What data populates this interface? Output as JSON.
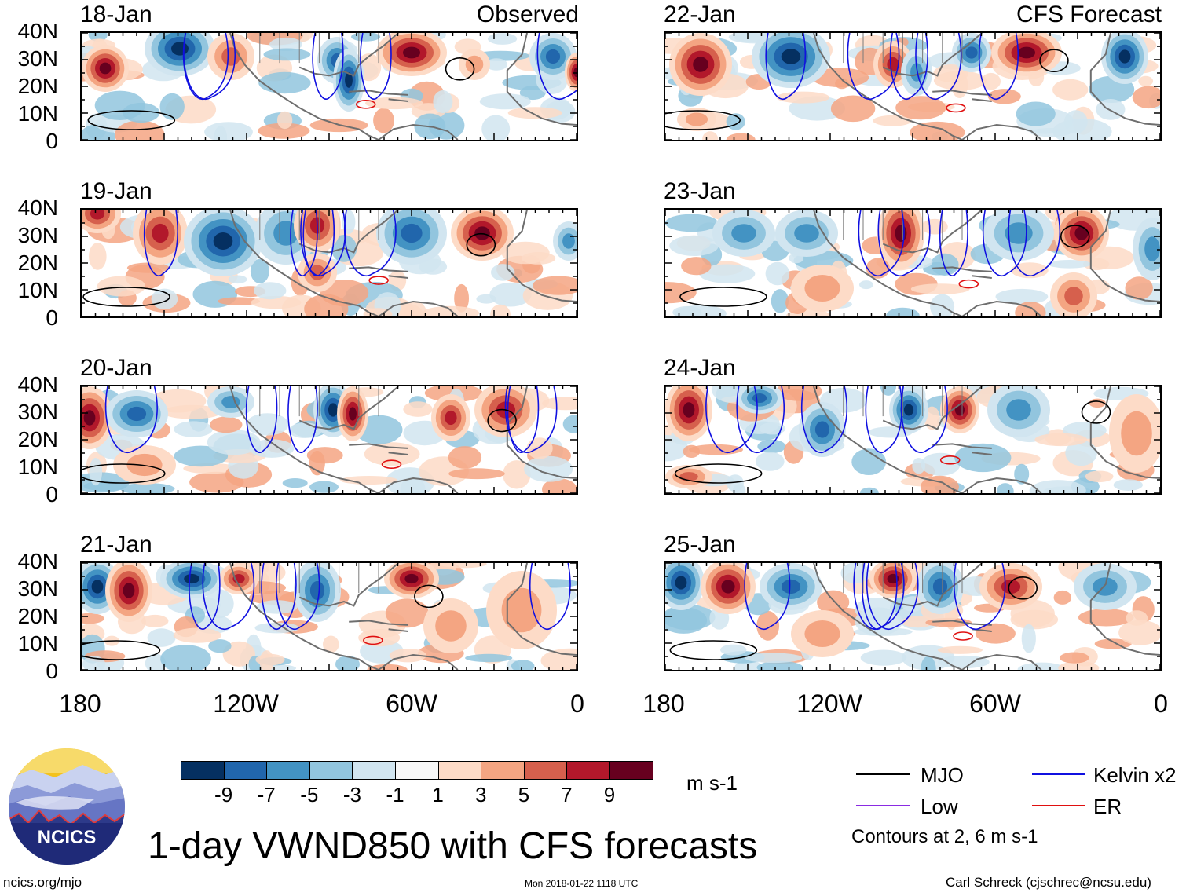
{
  "colors": {
    "neg9": "#053061",
    "neg7": "#2166ac",
    "neg5": "#4393c3",
    "neg3": "#92c5de",
    "neg1": "#d1e5f0",
    "zero": "#f7f7f7",
    "pos1": "#fddbc7",
    "pos3": "#f4a582",
    "pos5": "#d6604d",
    "pos7": "#b2182b",
    "pos9": "#67001f",
    "mjo": "#000000",
    "low": "#8a2be2",
    "kelvin": "#1010e0",
    "er": "#e01010"
  },
  "observed_tag": "Observed",
  "forecast_tag": "CFS Forecast",
  "panels_left": [
    "18-Jan",
    "19-Jan",
    "20-Jan",
    "21-Jan"
  ],
  "panels_right": [
    "22-Jan",
    "23-Jan",
    "24-Jan",
    "25-Jan"
  ],
  "y_axis_labels": [
    "40N",
    "30N",
    "20N",
    "10N",
    "0"
  ],
  "x_axis_labels": [
    "180",
    "120W",
    "60W",
    "0"
  ],
  "colorbar_labels": [
    "-9",
    "-7",
    "-5",
    "-3",
    "-1",
    "1",
    "3",
    "5",
    "7",
    "9"
  ],
  "units": "m s-1",
  "legend": {
    "mjo": "MJO",
    "kelvin": "Kelvin x2",
    "low": "Low",
    "er": "ER",
    "contours_note": "Contours at 2, 6 m s-1"
  },
  "title": "1-day VWND850 with CFS forecasts",
  "logo_text": "NCICS",
  "footer": {
    "left": "ncics.org/mjo",
    "center": "Mon 2018-01-22 1118 UTC",
    "right": "Carl Schreck (cjschrec@ncsu.edu)"
  }
}
